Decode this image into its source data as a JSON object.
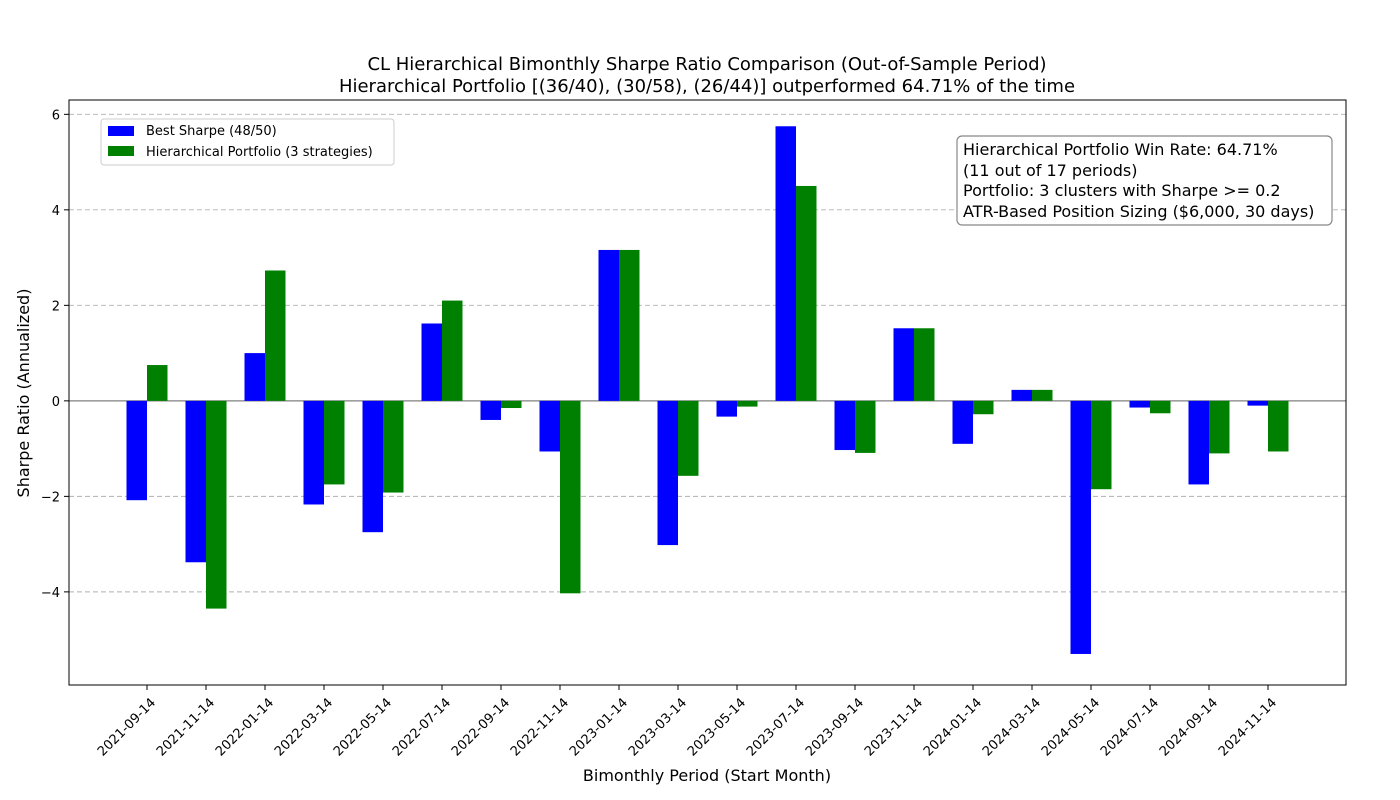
{
  "chart_data": {
    "type": "bar",
    "title": "CL Hierarchical Bimonthly Sharpe Ratio Comparison (Out-of-Sample Period)",
    "subtitle": "Hierarchical Portfolio [(36/40), (30/58), (26/44)] outperformed 64.71% of the time",
    "xlabel": "Bimonthly Period (Start Month)",
    "ylabel": "Sharpe Ratio (Annualized)",
    "ylim": [
      -5.95,
      6.3
    ],
    "yticks": [
      -4,
      -2,
      0,
      2,
      4,
      6
    ],
    "ytick_labels": [
      "−4",
      "−2",
      "0",
      "2",
      "4",
      "6"
    ],
    "grid": "horizontal dashed",
    "legend_position": "upper-left",
    "categories": [
      "2021-09-14",
      "2021-11-14",
      "2022-01-14",
      "2022-03-14",
      "2022-05-14",
      "2022-07-14",
      "2022-09-14",
      "2022-11-14",
      "2023-01-14",
      "2023-03-14",
      "2023-05-14",
      "2023-07-14",
      "2023-09-14",
      "2023-11-14",
      "2024-01-14",
      "2024-03-14",
      "2024-05-14",
      "2024-07-14",
      "2024-09-14",
      "2024-11-14"
    ],
    "series": [
      {
        "name": "Best Sharpe (48/50)",
        "color": "#0000ff",
        "values": [
          -2.08,
          -3.38,
          1.0,
          -2.17,
          -2.75,
          1.62,
          -0.4,
          -1.06,
          3.16,
          -3.02,
          -0.33,
          5.75,
          -1.03,
          1.52,
          -0.9,
          0.23,
          -5.3,
          -0.14,
          -1.75,
          -0.1
        ]
      },
      {
        "name": "Hierarchical Portfolio (3 strategies)",
        "color": "#008000",
        "values": [
          0.75,
          -4.35,
          2.73,
          -1.75,
          -1.92,
          2.1,
          -0.15,
          -4.03,
          3.16,
          -1.57,
          -0.12,
          4.5,
          -1.09,
          1.52,
          -0.28,
          0.23,
          -1.85,
          -0.26,
          -1.1,
          -1.06
        ]
      }
    ],
    "annotation": [
      "Hierarchical Portfolio Win Rate: 64.71%",
      "(11 out of 17 periods)",
      "Portfolio: 3 clusters with Sharpe >= 0.2",
      "ATR-Based Position Sizing ($6,000, 30 days)"
    ]
  }
}
